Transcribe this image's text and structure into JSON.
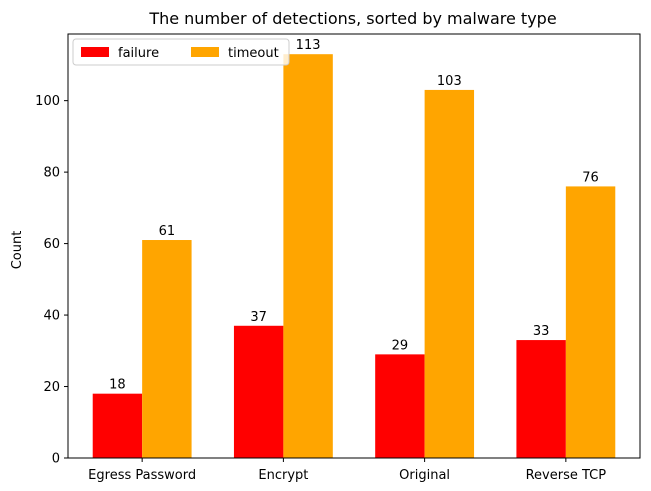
{
  "chart_data": {
    "type": "bar",
    "title": "The number of detections, sorted by malware type",
    "xlabel": "",
    "ylabel": "Count",
    "categories": [
      "Egress Password",
      "Encrypt",
      "Original",
      "Reverse TCP"
    ],
    "series": [
      {
        "name": "failure",
        "color": "#ff0000",
        "values": [
          18,
          37,
          29,
          33
        ]
      },
      {
        "name": "timeout",
        "color": "#ffa500",
        "values": [
          61,
          113,
          103,
          76
        ]
      }
    ],
    "ylim": [
      0,
      118.65
    ],
    "yticks": [
      0,
      20,
      40,
      60,
      80,
      100
    ],
    "grid": false,
    "legend_position": "top-left",
    "data_labels": true
  }
}
